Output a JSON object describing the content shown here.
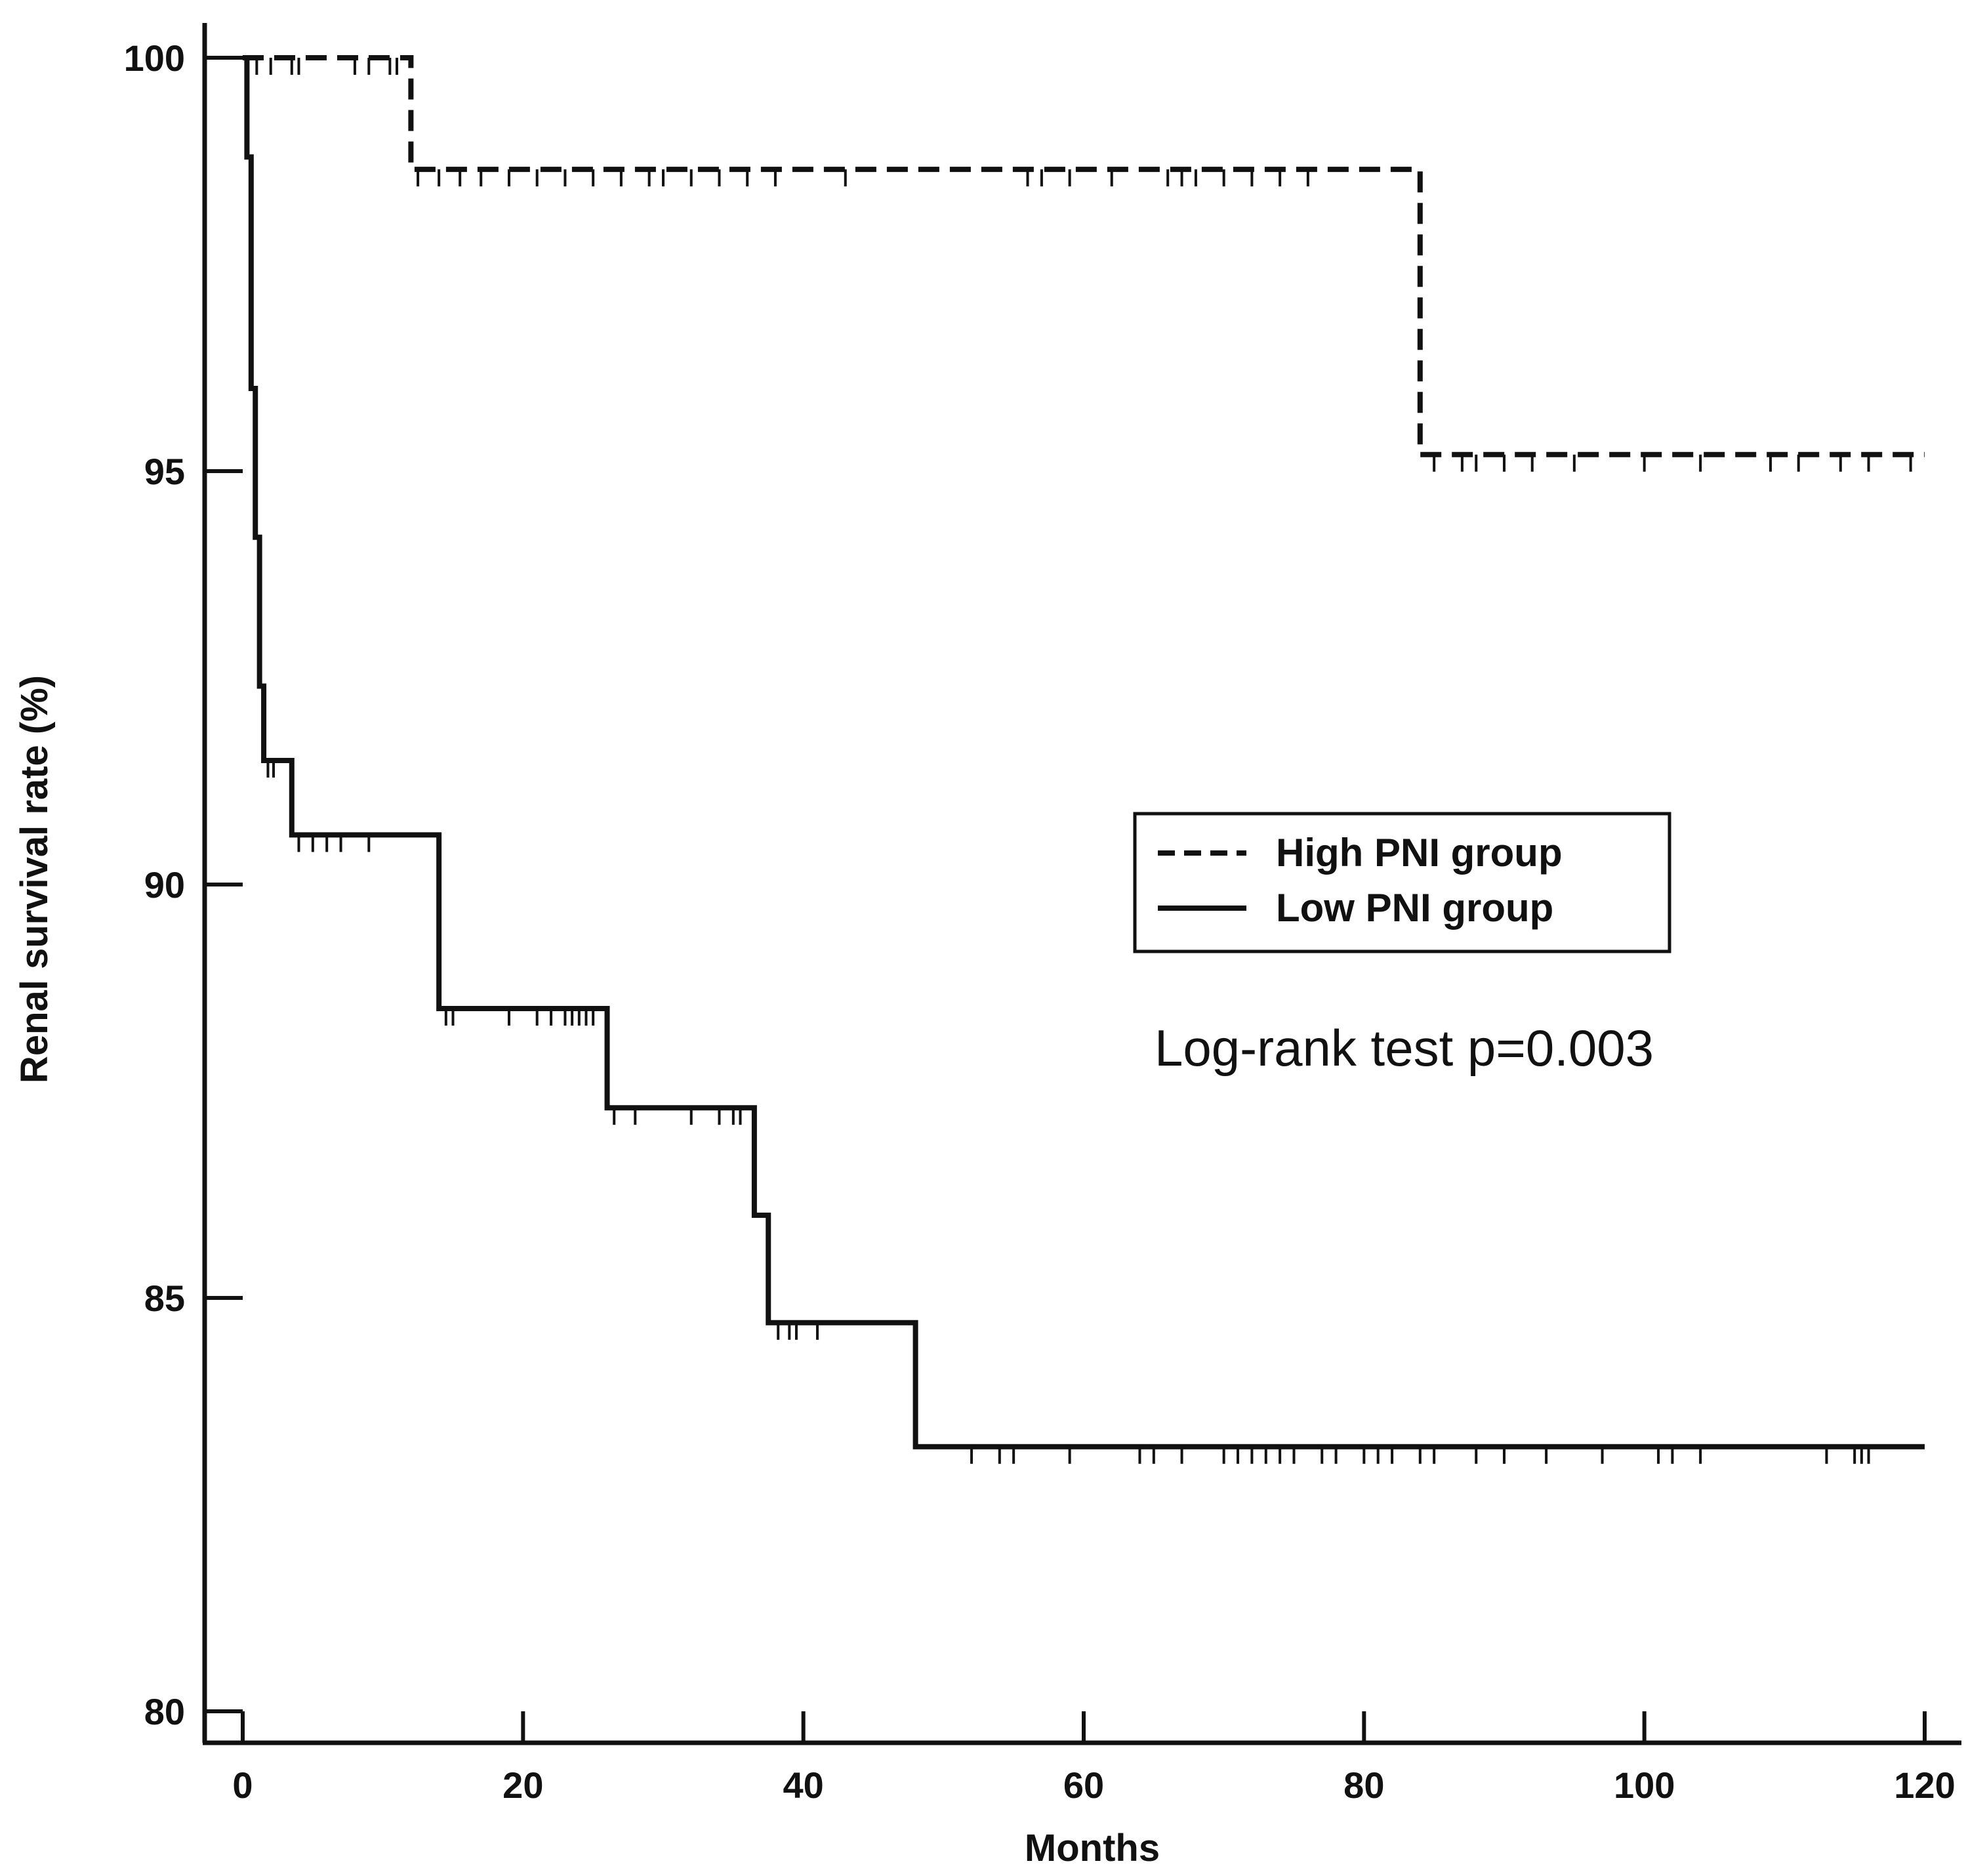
{
  "chart_data": {
    "type": "line",
    "subtype": "kaplan-meier step",
    "title": "",
    "xlabel": "Months",
    "ylabel": "Renal survival rate (%)",
    "xlim": [
      0,
      120
    ],
    "ylim": [
      80,
      100
    ],
    "x_ticks": [
      "0",
      "20",
      "40",
      "60",
      "80",
      "100",
      "120"
    ],
    "y_ticks": [
      "80",
      "85",
      "90",
      "95",
      "100"
    ],
    "grid": false,
    "legend_position": "center-right",
    "annotation": "Log-rank test p=0.003",
    "series": [
      {
        "name": "High PNI group",
        "style": "dashed",
        "color": "#111111",
        "steps": [
          [
            0,
            100
          ],
          [
            12,
            98.65
          ],
          [
            84,
            95.2
          ],
          [
            120,
            95.2
          ]
        ],
        "censored": [
          1,
          2,
          3.5,
          4,
          8,
          9,
          10.5,
          11,
          12.5,
          14,
          15.5,
          17,
          19,
          21,
          23,
          25,
          27,
          29,
          30,
          32,
          34,
          36,
          38,
          43,
          56,
          57,
          59,
          62,
          66,
          67,
          68,
          70,
          72,
          74,
          76,
          85,
          87,
          88,
          90,
          92,
          95,
          100,
          104,
          109,
          111,
          114,
          116,
          119
        ]
      },
      {
        "name": "Low PNI group",
        "style": "solid",
        "color": "#111111",
        "steps": [
          [
            0,
            100
          ],
          [
            0.3,
            98.8
          ],
          [
            0.6,
            96.0
          ],
          [
            0.9,
            94.2
          ],
          [
            1.2,
            92.4
          ],
          [
            1.5,
            91.5
          ],
          [
            3.5,
            90.6
          ],
          [
            14,
            88.5
          ],
          [
            26,
            87.3
          ],
          [
            36.5,
            86.0
          ],
          [
            37.5,
            84.7
          ],
          [
            48,
            83.2
          ],
          [
            120,
            83.2
          ]
        ],
        "censored": [
          1.8,
          2.2,
          4,
          5,
          6,
          7,
          9,
          14.5,
          15,
          19,
          21,
          22,
          23,
          23.5,
          24,
          24.5,
          25,
          26.5,
          28,
          32,
          34,
          35,
          35.5,
          38.2,
          39,
          39.5,
          41,
          52,
          54,
          55,
          59,
          64,
          65,
          67,
          70,
          71,
          72,
          73,
          74,
          75,
          77,
          78,
          80,
          81,
          82,
          84,
          85,
          88,
          90,
          93,
          97,
          101,
          102,
          104,
          113,
          115,
          115.5,
          116
        ]
      }
    ]
  }
}
